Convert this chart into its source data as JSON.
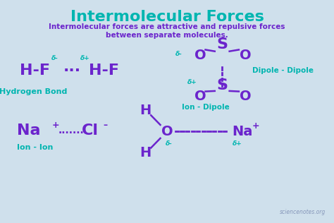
{
  "bg_color": "#cfe0ec",
  "title": "Intermolecular Forces",
  "title_color": "#00b5b0",
  "subtitle_line1": "Intermolecular forces are attractive and repulsive forces",
  "subtitle_line2": "between separate molecules.",
  "subtitle_color": "#6b24cc",
  "purple": "#6b24cc",
  "teal": "#00b5b0",
  "watermark": "sciencenotes.org",
  "watermark_color": "#8899bb",
  "fig_w": 4.74,
  "fig_h": 3.16,
  "dpi": 100
}
